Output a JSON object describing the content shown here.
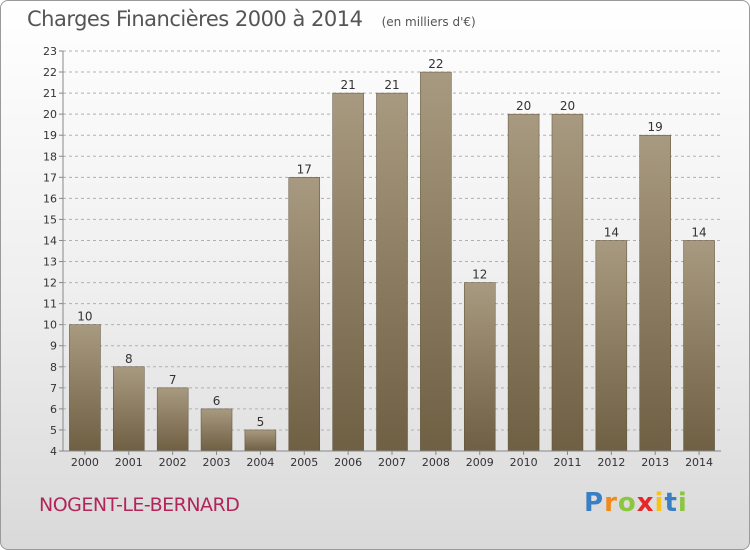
{
  "header": {
    "title": "Charges Financières 2000 à 2014",
    "subtitle": "(en milliers d'€)"
  },
  "commune": "NOGENT-LE-BERNARD",
  "brand": {
    "letters": [
      "P",
      "r",
      "o",
      "x",
      "i",
      "t",
      "i"
    ],
    "colors": [
      "#3a7fc4",
      "#f08a1a",
      "#8cc63f",
      "#e8262a",
      "#f7c21a",
      "#3a7fc4",
      "#8cc63f"
    ]
  },
  "colors": {
    "bar_top": "#a89a80",
    "bar_bottom": "#6f5f43",
    "grid": "#b0b0b0",
    "axis_text": "#333333"
  },
  "chart_data": {
    "type": "bar",
    "categories": [
      "2000",
      "2001",
      "2002",
      "2003",
      "2004",
      "2005",
      "2006",
      "2007",
      "2008",
      "2009",
      "2010",
      "2011",
      "2012",
      "2013",
      "2014"
    ],
    "values": [
      10,
      8,
      7,
      6,
      5,
      17,
      21,
      21,
      22,
      12,
      20,
      20,
      14,
      19,
      14
    ],
    "data_labels": [
      "10",
      "8",
      "7",
      "6",
      "5",
      "17",
      "21",
      "21",
      "22",
      "12",
      "20",
      "20",
      "14",
      "19",
      "14"
    ],
    "yticks": [
      "4",
      "5",
      "6",
      "7",
      "8",
      "9",
      "10",
      "11",
      "12",
      "13",
      "14",
      "15",
      "16",
      "17",
      "18",
      "19",
      "20",
      "21",
      "22",
      "23"
    ],
    "ylim": [
      4,
      23
    ],
    "grid": "horizontal dashed",
    "legend": "none"
  }
}
